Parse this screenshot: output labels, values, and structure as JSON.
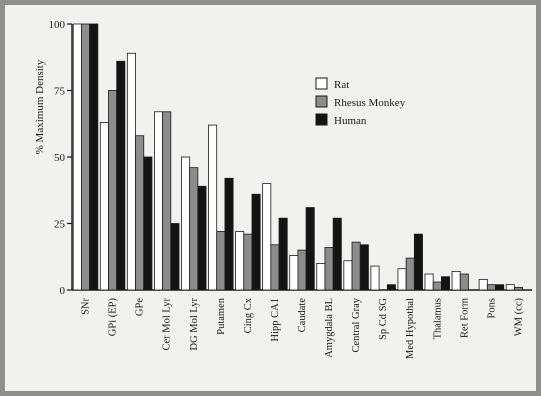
{
  "chart_data": {
    "type": "bar",
    "title": "",
    "xlabel": "",
    "ylabel": "% Maximum Density",
    "ylim": [
      0,
      100
    ],
    "yticks": [
      0,
      25,
      50,
      75,
      100
    ],
    "legend_position": "top-right",
    "categories": [
      "SNr",
      "GPi (EP)",
      "GPe",
      "Cer Mol Lyr",
      "DG Mol Lyr",
      "Putamen",
      "Cing Cx",
      "Hipp CA1",
      "Caudate",
      "Amygdala BL",
      "Central Gray",
      "Sp Cd SG",
      "Med Hypothal",
      "Thalamus",
      "Ret Form",
      "Pons",
      "WM (cc)"
    ],
    "series": [
      {
        "name": "Rat",
        "color": "#ffffff",
        "values": [
          100,
          63,
          89,
          67,
          50,
          62,
          22,
          40,
          13,
          10,
          11,
          9,
          8,
          6,
          7,
          4,
          2
        ]
      },
      {
        "name": "Rhesus Monkey",
        "color": "#8c8c8c",
        "values": [
          100,
          75,
          58,
          67,
          46,
          22,
          21,
          17,
          15,
          16,
          18,
          null,
          12,
          3,
          6,
          2,
          1
        ]
      },
      {
        "name": "Human",
        "color": "#141414",
        "values": [
          100,
          86,
          50,
          25,
          39,
          42,
          36,
          27,
          31,
          27,
          17,
          2,
          21,
          5,
          null,
          2,
          null
        ]
      }
    ]
  }
}
